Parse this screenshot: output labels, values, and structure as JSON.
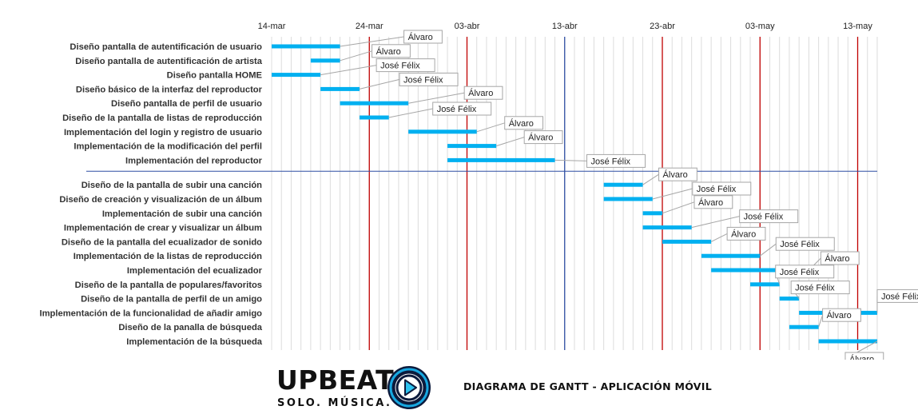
{
  "chart_data": {
    "type": "gantt",
    "title": "DIAGRAMA DE GANTT - APLICACIÓN MÓVIL",
    "x_ticks": [
      "14-mar",
      "24-mar",
      "03-abr",
      "13-abr",
      "23-abr",
      "03-may",
      "13-may"
    ],
    "x_range": [
      "14-mar",
      "15-may"
    ],
    "gridlines": "daily",
    "highlight_lines": [
      {
        "date": "24-mar",
        "color": "#c00000"
      },
      {
        "date": "03-abr",
        "color": "#c00000"
      },
      {
        "date": "13-abr",
        "color": "#2e4ea3"
      },
      {
        "date": "23-abr",
        "color": "#c00000"
      },
      {
        "date": "03-may",
        "color": "#c00000"
      },
      {
        "date": "13-may",
        "color": "#c00000"
      }
    ],
    "bar_color": "#00b0f0",
    "section_divider_color": "#2e4ea3",
    "groups": [
      {
        "tasks": [
          {
            "name": "Diseño pantalla de autentificación de usuario",
            "start": "14-mar",
            "end": "21-mar",
            "owner": "Álvaro"
          },
          {
            "name": "Diseño pantalla de autentificación de artista",
            "start": "18-mar",
            "end": "21-mar",
            "owner": "Álvaro"
          },
          {
            "name": "Diseño pantalla HOME",
            "start": "14-mar",
            "end": "19-mar",
            "owner": "José Félix"
          },
          {
            "name": "Diseño básico de la interfaz del reproductor",
            "start": "19-mar",
            "end": "23-mar",
            "owner": "José Félix"
          },
          {
            "name": "Diseño pantalla de perfil de usuario",
            "start": "21-mar",
            "end": "28-mar",
            "owner": "Álvaro"
          },
          {
            "name": "Diseño de la pantalla de listas de reproducción",
            "start": "23-mar",
            "end": "26-mar",
            "owner": "José Félix"
          },
          {
            "name": "Implementación del login y registro de usuario",
            "start": "28-mar",
            "end": "04-abr",
            "owner": "Álvaro"
          },
          {
            "name": "Implementación de la modificación del perfil",
            "start": "01-abr",
            "end": "06-abr",
            "owner": "Álvaro"
          },
          {
            "name": "Implementación del reproductor",
            "start": "01-abr",
            "end": "12-abr",
            "owner": "José Félix"
          }
        ]
      },
      {
        "tasks": [
          {
            "name": "Diseño de la pantalla de subir una canción",
            "start": "17-abr",
            "end": "21-abr",
            "owner": "Álvaro"
          },
          {
            "name": "Diseño de creación y visualización de un álbum",
            "start": "17-abr",
            "end": "22-abr",
            "owner": "José Félix"
          },
          {
            "name": "Implementación de subir una canción",
            "start": "21-abr",
            "end": "23-abr",
            "owner": "Álvaro"
          },
          {
            "name": "Implementación de crear y visualizar un álbum",
            "start": "21-abr",
            "end": "26-abr",
            "owner": "José Félix"
          },
          {
            "name": "Diseño de la pantalla del ecualizador de sonido",
            "start": "23-abr",
            "end": "28-abr",
            "owner": "Álvaro"
          },
          {
            "name": "Implementación de la listas de reproducción",
            "start": "27-abr",
            "end": "03-may",
            "owner": "José Félix"
          },
          {
            "name": "Implementación del ecualizador",
            "start": "28-abr",
            "end": "08-may",
            "owner": "Álvaro"
          },
          {
            "name": "Diseño de la pantalla de populares/favoritos",
            "start": "02-may",
            "end": "05-may",
            "owner": "José Félix"
          },
          {
            "name": "Diseño de la pantalla de perfil de un amigo",
            "start": "05-may",
            "end": "07-may",
            "owner": "José Félix"
          },
          {
            "name": "Implementación de la funcionalidad de añadir amigo",
            "start": "07-may",
            "end": "15-may",
            "owner": "José Félix"
          },
          {
            "name": "Diseño de la panalla de búsqueda",
            "start": "06-may",
            "end": "09-may",
            "owner": "Álvaro"
          },
          {
            "name": "Implementación de la búsqueda",
            "start": "09-may",
            "end": "15-may",
            "owner": "Álvaro"
          }
        ]
      }
    ]
  },
  "footer": {
    "logo_word": "UPBEAT",
    "logo_tagline": "SOLO. MÚSICA.",
    "logo_icon": "play-icon",
    "logo_colors": {
      "ring": "#0c1a3c",
      "accent": "#17a7e0",
      "play": "#2ec3f0"
    }
  }
}
